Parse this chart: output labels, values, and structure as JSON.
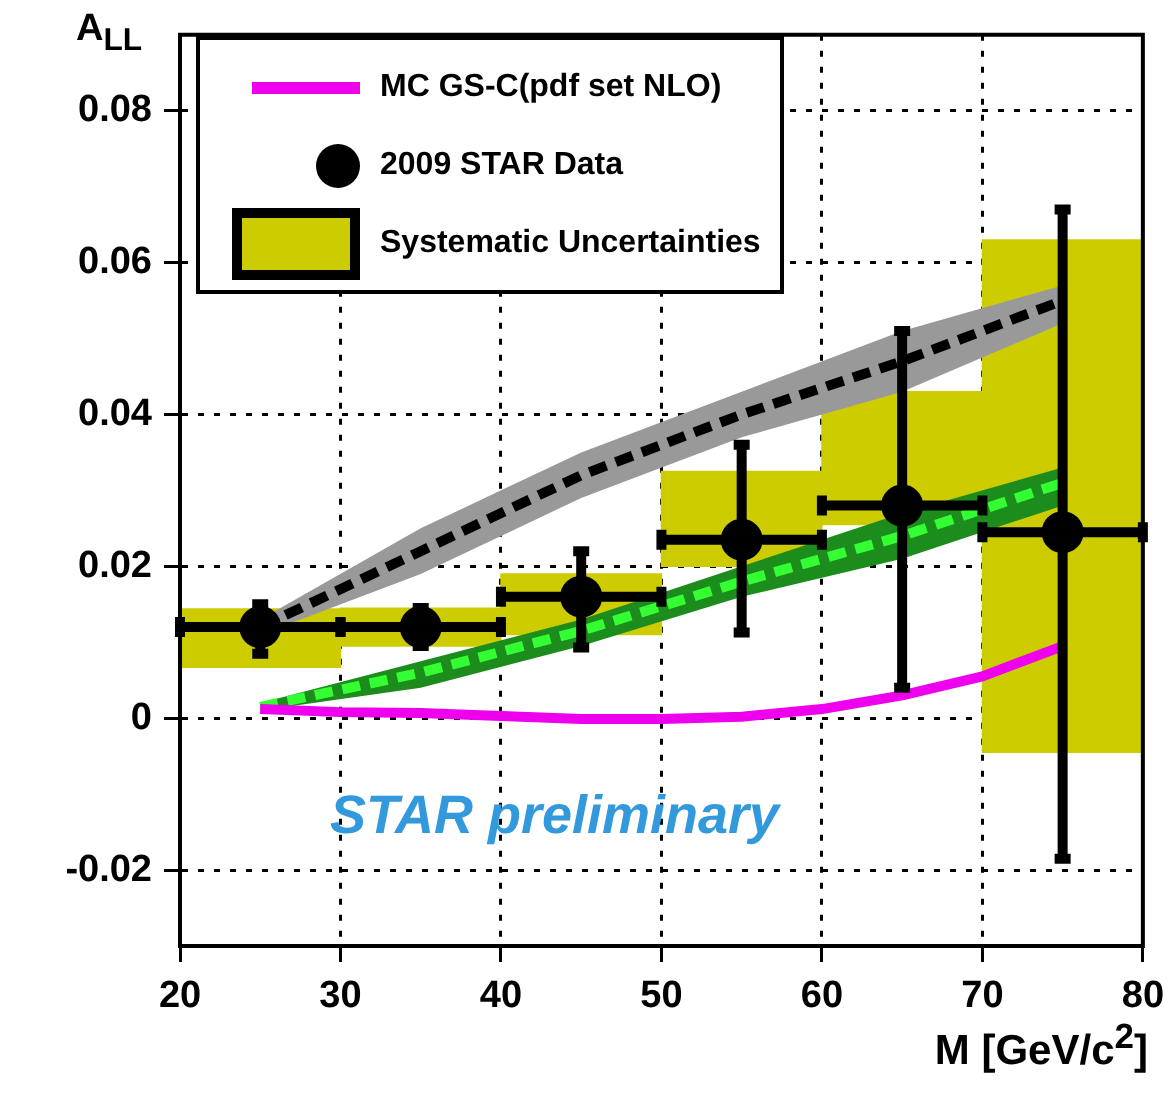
{
  "chart_data": {
    "type": "scatter",
    "ylabel": "A$_{LL}$",
    "xlabel": "M [GeV/c$^{2}$]",
    "xlim": [
      20,
      80
    ],
    "xticks": [
      20,
      30,
      40,
      50,
      60,
      70,
      80
    ],
    "ylim": [
      -0.03,
      0.09
    ],
    "yticks": [
      -0.02,
      0,
      0.02,
      0.04,
      0.06,
      0.08
    ],
    "grid": true,
    "legend": "top left",
    "annotations": [
      "STAR preliminary"
    ],
    "series": [
      {
        "name": "MC GS-C(pdf set NLO)",
        "type": "line",
        "color": "#ee00ee",
        "marker": "none",
        "line_style": "solid",
        "x": [
          25,
          30,
          35,
          40,
          45,
          50,
          55,
          60,
          65,
          70,
          75
        ],
        "values": [
          0.0012,
          0.0008,
          0.0007,
          0.0003,
          -0.0001,
          -0.0001,
          0.0002,
          0.0012,
          0.003,
          0.0055,
          0.0095
        ]
      },
      {
        "name": "2009 STAR Data",
        "color": "#000000",
        "marker": "circle",
        "x": [
          25,
          35,
          45,
          55,
          65,
          75
        ],
        "values": [
          0.012,
          0.012,
          0.016,
          0.0235,
          0.028,
          0.0245
        ],
        "errors": [
          [
            0.0085,
            0.015
          ],
          [
            0.0095,
            0.0145
          ],
          [
            0.0093,
            0.022
          ],
          [
            0.0113,
            0.036
          ],
          [
            0.004,
            0.051
          ],
          [
            -0.0185,
            0.067
          ]
        ],
        "xerrors": [
          5,
          5,
          5,
          5,
          5,
          5
        ]
      },
      {
        "name": "Systematic Uncertainties",
        "type": "bar",
        "color": "#cccc00",
        "x": [
          25,
          35,
          45,
          55,
          65,
          75
        ],
        "base": [
          0.0067,
          0.0095,
          0.011,
          0.02,
          0.0255,
          -0.0045
        ],
        "values": [
          0.0077,
          0.005,
          0.008,
          0.0125,
          0.0175,
          0.0675
        ]
      },
      {
        "type": "line",
        "color": "#000000",
        "marker": "none",
        "line_style": "dashed",
        "x": [
          25,
          35,
          45,
          55,
          65,
          75
        ],
        "values": [
          0.012,
          0.022,
          0.032,
          0.04,
          0.047,
          0.055
        ],
        "lower": [
          0.011,
          0.019,
          0.029,
          0.037,
          0.043,
          0.052
        ],
        "upper": [
          0.013,
          0.025,
          0.035,
          0.043,
          0.051,
          0.057
        ]
      },
      {
        "type": "line",
        "color": "#33ff33",
        "marker": "none",
        "line_style": "dashed",
        "x": [
          25,
          35,
          45,
          55,
          65,
          75
        ],
        "values": [
          0.0015,
          0.006,
          0.0115,
          0.018,
          0.024,
          0.031
        ],
        "lower": [
          0.001,
          0.004,
          0.0095,
          0.016,
          0.021,
          0.028
        ],
        "upper": [
          0.002,
          0.0075,
          0.013,
          0.02,
          0.027,
          0.033
        ]
      }
    ]
  }
}
